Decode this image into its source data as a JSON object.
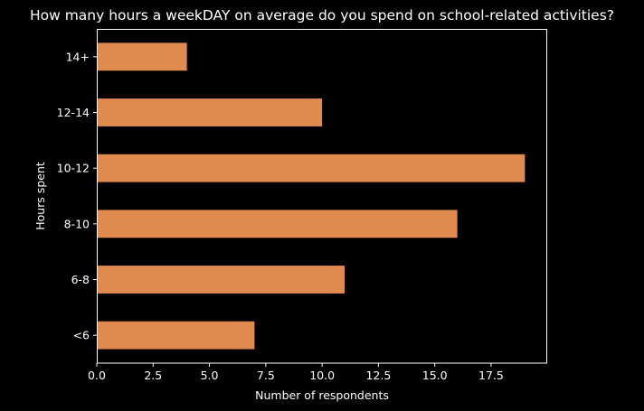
{
  "chart_data": {
    "type": "bar",
    "orientation": "horizontal",
    "title": "How many hours a weekDAY on average do you spend on school-related activities?",
    "xlabel": "Number of respondents",
    "ylabel": "Hours spent",
    "categories": [
      "<6",
      "6-8",
      "8-10",
      "10-12",
      "12-14",
      "14+"
    ],
    "values": [
      7,
      11,
      16,
      19,
      10,
      4
    ],
    "xlim": [
      0,
      19.95
    ],
    "xticks": [
      0.0,
      2.5,
      5.0,
      7.5,
      10.0,
      12.5,
      15.0,
      17.5
    ],
    "xtick_labels": [
      "0.0",
      "2.5",
      "5.0",
      "7.5",
      "10.0",
      "12.5",
      "15.0",
      "17.5"
    ],
    "grid": false,
    "bar_color": "#e08a4f",
    "background_color": "#000000",
    "foreground_color": "#ffffff"
  }
}
